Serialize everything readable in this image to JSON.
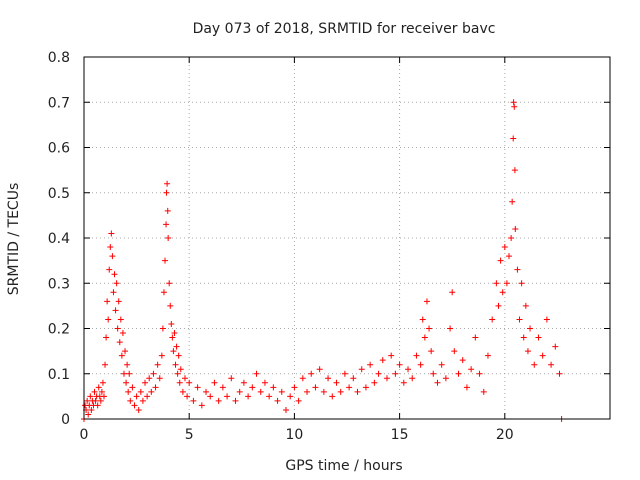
{
  "chart_data": {
    "type": "scatter",
    "title": "Day 073 of 2018, SRMTID for receiver bavc",
    "xlabel": "GPS time / hours",
    "ylabel": "SRMTID / TECUs",
    "xlim": [
      0,
      25
    ],
    "ylim": [
      0,
      0.8
    ],
    "xticks": [
      0,
      5,
      10,
      15,
      20
    ],
    "yticks": [
      0,
      0.1,
      0.2,
      0.3,
      0.4,
      0.5,
      0.6,
      0.7,
      0.8
    ],
    "xtick_labels": [
      "0",
      "5",
      "10",
      "15",
      "20"
    ],
    "ytick_labels": [
      "0",
      "0.1",
      "0.2",
      "0.3",
      "0.4",
      "0.5",
      "0.6",
      "0.7",
      "0.8"
    ],
    "grid": true,
    "marker": "+",
    "color": "#ff0000",
    "series": [
      {
        "name": "SRMTID",
        "points": [
          [
            0.0,
            0.0
          ],
          [
            0.05,
            0.03
          ],
          [
            0.1,
            0.02
          ],
          [
            0.15,
            0.04
          ],
          [
            0.2,
            0.01
          ],
          [
            0.25,
            0.03
          ],
          [
            0.3,
            0.05
          ],
          [
            0.35,
            0.02
          ],
          [
            0.4,
            0.04
          ],
          [
            0.45,
            0.03
          ],
          [
            0.5,
            0.06
          ],
          [
            0.55,
            0.04
          ],
          [
            0.6,
            0.05
          ],
          [
            0.65,
            0.03
          ],
          [
            0.7,
            0.07
          ],
          [
            0.75,
            0.05
          ],
          [
            0.8,
            0.04
          ],
          [
            0.85,
            0.06
          ],
          [
            0.9,
            0.08
          ],
          [
            0.95,
            0.05
          ],
          [
            1.0,
            0.12
          ],
          [
            1.05,
            0.18
          ],
          [
            1.1,
            0.26
          ],
          [
            1.15,
            0.22
          ],
          [
            1.2,
            0.33
          ],
          [
            1.25,
            0.38
          ],
          [
            1.3,
            0.41
          ],
          [
            1.35,
            0.36
          ],
          [
            1.4,
            0.28
          ],
          [
            1.45,
            0.32
          ],
          [
            1.5,
            0.24
          ],
          [
            1.55,
            0.3
          ],
          [
            1.6,
            0.2
          ],
          [
            1.65,
            0.26
          ],
          [
            1.7,
            0.17
          ],
          [
            1.75,
            0.22
          ],
          [
            1.8,
            0.14
          ],
          [
            1.85,
            0.19
          ],
          [
            1.9,
            0.1
          ],
          [
            1.95,
            0.15
          ],
          [
            2.0,
            0.08
          ],
          [
            2.05,
            0.12
          ],
          [
            2.1,
            0.06
          ],
          [
            2.15,
            0.1
          ],
          [
            2.2,
            0.04
          ],
          [
            2.3,
            0.07
          ],
          [
            2.4,
            0.03
          ],
          [
            2.5,
            0.05
          ],
          [
            2.6,
            0.02
          ],
          [
            2.7,
            0.06
          ],
          [
            2.8,
            0.04
          ],
          [
            2.9,
            0.08
          ],
          [
            3.0,
            0.05
          ],
          [
            3.1,
            0.09
          ],
          [
            3.2,
            0.06
          ],
          [
            3.3,
            0.1
          ],
          [
            3.4,
            0.07
          ],
          [
            3.5,
            0.12
          ],
          [
            3.6,
            0.09
          ],
          [
            3.7,
            0.14
          ],
          [
            3.75,
            0.2
          ],
          [
            3.8,
            0.28
          ],
          [
            3.85,
            0.35
          ],
          [
            3.9,
            0.43
          ],
          [
            3.92,
            0.5
          ],
          [
            3.95,
            0.52
          ],
          [
            3.98,
            0.46
          ],
          [
            4.0,
            0.4
          ],
          [
            4.05,
            0.3
          ],
          [
            4.1,
            0.25
          ],
          [
            4.15,
            0.21
          ],
          [
            4.2,
            0.18
          ],
          [
            4.25,
            0.15
          ],
          [
            4.3,
            0.19
          ],
          [
            4.35,
            0.12
          ],
          [
            4.4,
            0.16
          ],
          [
            4.45,
            0.1
          ],
          [
            4.5,
            0.14
          ],
          [
            4.55,
            0.08
          ],
          [
            4.6,
            0.11
          ],
          [
            4.7,
            0.06
          ],
          [
            4.8,
            0.09
          ],
          [
            4.9,
            0.05
          ],
          [
            5.0,
            0.08
          ],
          [
            5.2,
            0.04
          ],
          [
            5.4,
            0.07
          ],
          [
            5.6,
            0.03
          ],
          [
            5.8,
            0.06
          ],
          [
            6.0,
            0.05
          ],
          [
            6.2,
            0.08
          ],
          [
            6.4,
            0.04
          ],
          [
            6.6,
            0.07
          ],
          [
            6.8,
            0.05
          ],
          [
            7.0,
            0.09
          ],
          [
            7.2,
            0.04
          ],
          [
            7.4,
            0.06
          ],
          [
            7.6,
            0.08
          ],
          [
            7.8,
            0.05
          ],
          [
            8.0,
            0.07
          ],
          [
            8.2,
            0.1
          ],
          [
            8.4,
            0.06
          ],
          [
            8.6,
            0.08
          ],
          [
            8.8,
            0.05
          ],
          [
            9.0,
            0.07
          ],
          [
            9.2,
            0.04
          ],
          [
            9.4,
            0.06
          ],
          [
            9.6,
            0.02
          ],
          [
            9.8,
            0.05
          ],
          [
            10.0,
            0.07
          ],
          [
            10.2,
            0.04
          ],
          [
            10.4,
            0.09
          ],
          [
            10.6,
            0.06
          ],
          [
            10.8,
            0.1
          ],
          [
            11.0,
            0.07
          ],
          [
            11.2,
            0.11
          ],
          [
            11.4,
            0.06
          ],
          [
            11.6,
            0.09
          ],
          [
            11.8,
            0.05
          ],
          [
            12.0,
            0.08
          ],
          [
            12.2,
            0.06
          ],
          [
            12.4,
            0.1
          ],
          [
            12.6,
            0.07
          ],
          [
            12.8,
            0.09
          ],
          [
            13.0,
            0.06
          ],
          [
            13.2,
            0.11
          ],
          [
            13.4,
            0.07
          ],
          [
            13.6,
            0.12
          ],
          [
            13.8,
            0.08
          ],
          [
            14.0,
            0.1
          ],
          [
            14.2,
            0.13
          ],
          [
            14.4,
            0.09
          ],
          [
            14.6,
            0.14
          ],
          [
            14.8,
            0.1
          ],
          [
            15.0,
            0.12
          ],
          [
            15.2,
            0.08
          ],
          [
            15.4,
            0.11
          ],
          [
            15.6,
            0.09
          ],
          [
            15.8,
            0.14
          ],
          [
            16.0,
            0.12
          ],
          [
            16.1,
            0.22
          ],
          [
            16.2,
            0.18
          ],
          [
            16.3,
            0.26
          ],
          [
            16.4,
            0.2
          ],
          [
            16.5,
            0.15
          ],
          [
            16.6,
            0.1
          ],
          [
            16.8,
            0.08
          ],
          [
            17.0,
            0.12
          ],
          [
            17.2,
            0.09
          ],
          [
            17.4,
            0.2
          ],
          [
            17.5,
            0.28
          ],
          [
            17.6,
            0.15
          ],
          [
            17.8,
            0.1
          ],
          [
            18.0,
            0.13
          ],
          [
            18.2,
            0.07
          ],
          [
            18.4,
            0.11
          ],
          [
            18.6,
            0.18
          ],
          [
            18.8,
            0.1
          ],
          [
            19.0,
            0.06
          ],
          [
            19.2,
            0.14
          ],
          [
            19.4,
            0.22
          ],
          [
            19.6,
            0.3
          ],
          [
            19.7,
            0.25
          ],
          [
            19.8,
            0.35
          ],
          [
            19.9,
            0.28
          ],
          [
            20.0,
            0.38
          ],
          [
            20.1,
            0.3
          ],
          [
            20.2,
            0.36
          ],
          [
            20.3,
            0.4
          ],
          [
            20.35,
            0.48
          ],
          [
            20.4,
            0.62
          ],
          [
            20.42,
            0.7
          ],
          [
            20.45,
            0.69
          ],
          [
            20.48,
            0.55
          ],
          [
            20.5,
            0.42
          ],
          [
            20.6,
            0.33
          ],
          [
            20.7,
            0.22
          ],
          [
            20.8,
            0.3
          ],
          [
            20.9,
            0.18
          ],
          [
            21.0,
            0.25
          ],
          [
            21.1,
            0.15
          ],
          [
            21.2,
            0.2
          ],
          [
            21.4,
            0.12
          ],
          [
            21.6,
            0.18
          ],
          [
            21.8,
            0.14
          ],
          [
            22.0,
            0.22
          ],
          [
            22.2,
            0.12
          ],
          [
            22.4,
            0.16
          ],
          [
            22.6,
            0.1
          ],
          [
            22.7,
            0.0
          ]
        ]
      }
    ]
  }
}
